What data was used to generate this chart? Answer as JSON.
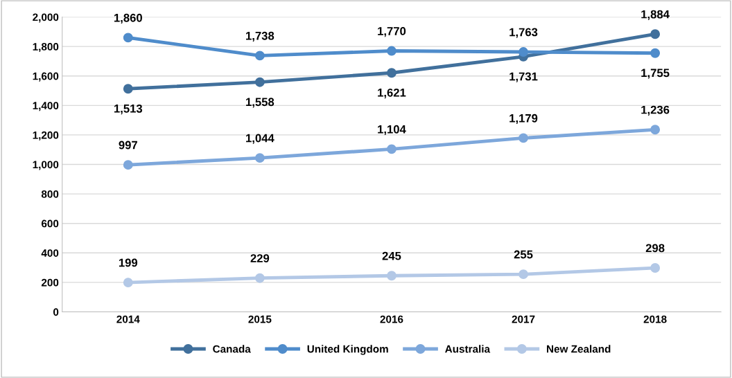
{
  "chart_data": {
    "type": "line",
    "categories": [
      "2014",
      "2015",
      "2016",
      "2017",
      "2018"
    ],
    "series": [
      {
        "name": "Canada",
        "color": "#41709c",
        "values": [
          1513,
          1558,
          1621,
          1731,
          1884
        ],
        "value_labels": [
          "1,513",
          "1,558",
          "1,621",
          "1,731",
          "1,884"
        ]
      },
      {
        "name": "United Kingdom",
        "color": "#4f8ccb",
        "values": [
          1860,
          1738,
          1770,
          1763,
          1755
        ],
        "value_labels": [
          "1,860",
          "1,738",
          "1,770",
          "1,763",
          "1,755"
        ]
      },
      {
        "name": "Australia",
        "color": "#7da7db",
        "values": [
          997,
          1044,
          1104,
          1179,
          1236
        ],
        "value_labels": [
          "997",
          "1,044",
          "1,104",
          "1,179",
          "1,236"
        ]
      },
      {
        "name": "New Zealand",
        "color": "#b3c8e6",
        "values": [
          199,
          229,
          245,
          255,
          298
        ],
        "value_labels": [
          "199",
          "229",
          "245",
          "255",
          "298"
        ]
      }
    ],
    "ylim": [
      0,
      2000
    ],
    "yticks": [
      0,
      200,
      400,
      600,
      800,
      {
        "value": 1000,
        "label": "1,000"
      },
      {
        "value": 1200,
        "label": "1,200"
      },
      {
        "value": 1400,
        "label": "1,400"
      },
      {
        "value": 1600,
        "label": "1,600"
      },
      {
        "value": 1800,
        "label": "1,800"
      },
      {
        "value": 2000,
        "label": "2,000"
      }
    ],
    "grid": "y",
    "legend": "bottom",
    "marker": "circle",
    "line_style": "solid"
  }
}
